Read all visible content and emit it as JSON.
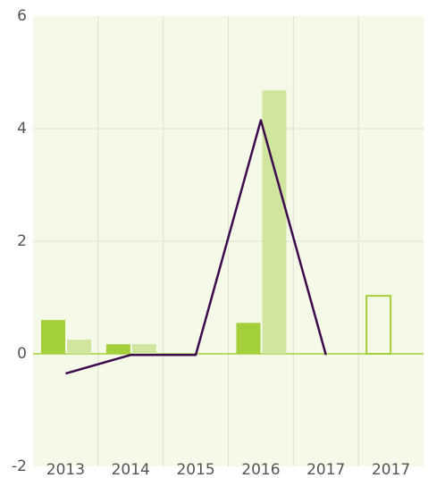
{
  "chart_data": {
    "type": "bar",
    "categories": [
      "2013",
      "2014",
      "2015",
      "2016",
      "2017",
      "2017"
    ],
    "series": [
      {
        "type": "bar",
        "color": "#a3cf3a",
        "values": [
          0.6,
          0.17,
          0,
          0.55,
          0,
          null
        ]
      },
      {
        "type": "bar",
        "color": "#d0e59e",
        "values": [
          0.25,
          0.17,
          0,
          4.68,
          0,
          0
        ]
      },
      {
        "type": "bar",
        "color": "#a3cf3a",
        "style": "outline",
        "values": [
          null,
          null,
          null,
          null,
          null,
          1.03
        ]
      },
      {
        "type": "line",
        "color": "#3d0a4f",
        "values": [
          -0.35,
          -0.02,
          -0.02,
          4.15,
          -0.02,
          null
        ]
      }
    ],
    "ylim": [
      -2,
      6
    ],
    "yticks": [
      -2,
      0,
      2,
      4,
      6
    ],
    "grid": true
  }
}
